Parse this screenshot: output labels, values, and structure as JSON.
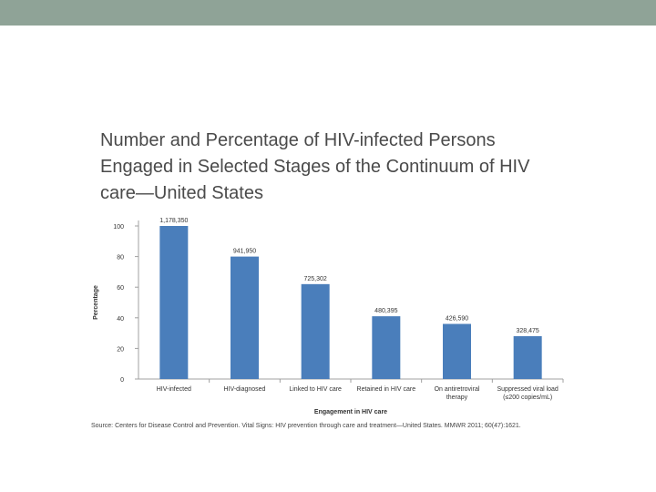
{
  "slide": {
    "title_lines": [
      "Number and Percentage of HIV-infected Persons",
      "Engaged in Selected Stages of the Continuum of HIV",
      "care—United States"
    ],
    "source": "Source: Centers for Disease Control and Prevention. Vital Signs: HIV prevention through care and treatment—United States.  MMWR  2011; 60(47):1621."
  },
  "colors": {
    "bar": "#4a7ebb",
    "top_bar": "#8fa397",
    "axis": "#a0a0a0",
    "text": "#4a4a4a"
  },
  "chart_data": {
    "type": "bar",
    "title": "",
    "xlabel": "Engagement in HIV care",
    "ylabel": "Percentage",
    "ylim": [
      0,
      100
    ],
    "yticks": [
      0,
      20,
      40,
      60,
      80,
      100
    ],
    "categories": [
      [
        "HIV-infected"
      ],
      [
        "HIV-diagnosed"
      ],
      [
        "Linked to HIV care"
      ],
      [
        "Retained in HIV care"
      ],
      [
        "On antiretroviral",
        "therapy"
      ],
      [
        "Suppressed viral load",
        "(≤200 copies/mL)"
      ]
    ],
    "values": [
      100,
      80,
      62,
      41,
      36,
      28
    ],
    "data_labels": [
      "1,178,350",
      "941,950",
      "725,302",
      "480,395",
      "426,590",
      "328,475"
    ]
  }
}
